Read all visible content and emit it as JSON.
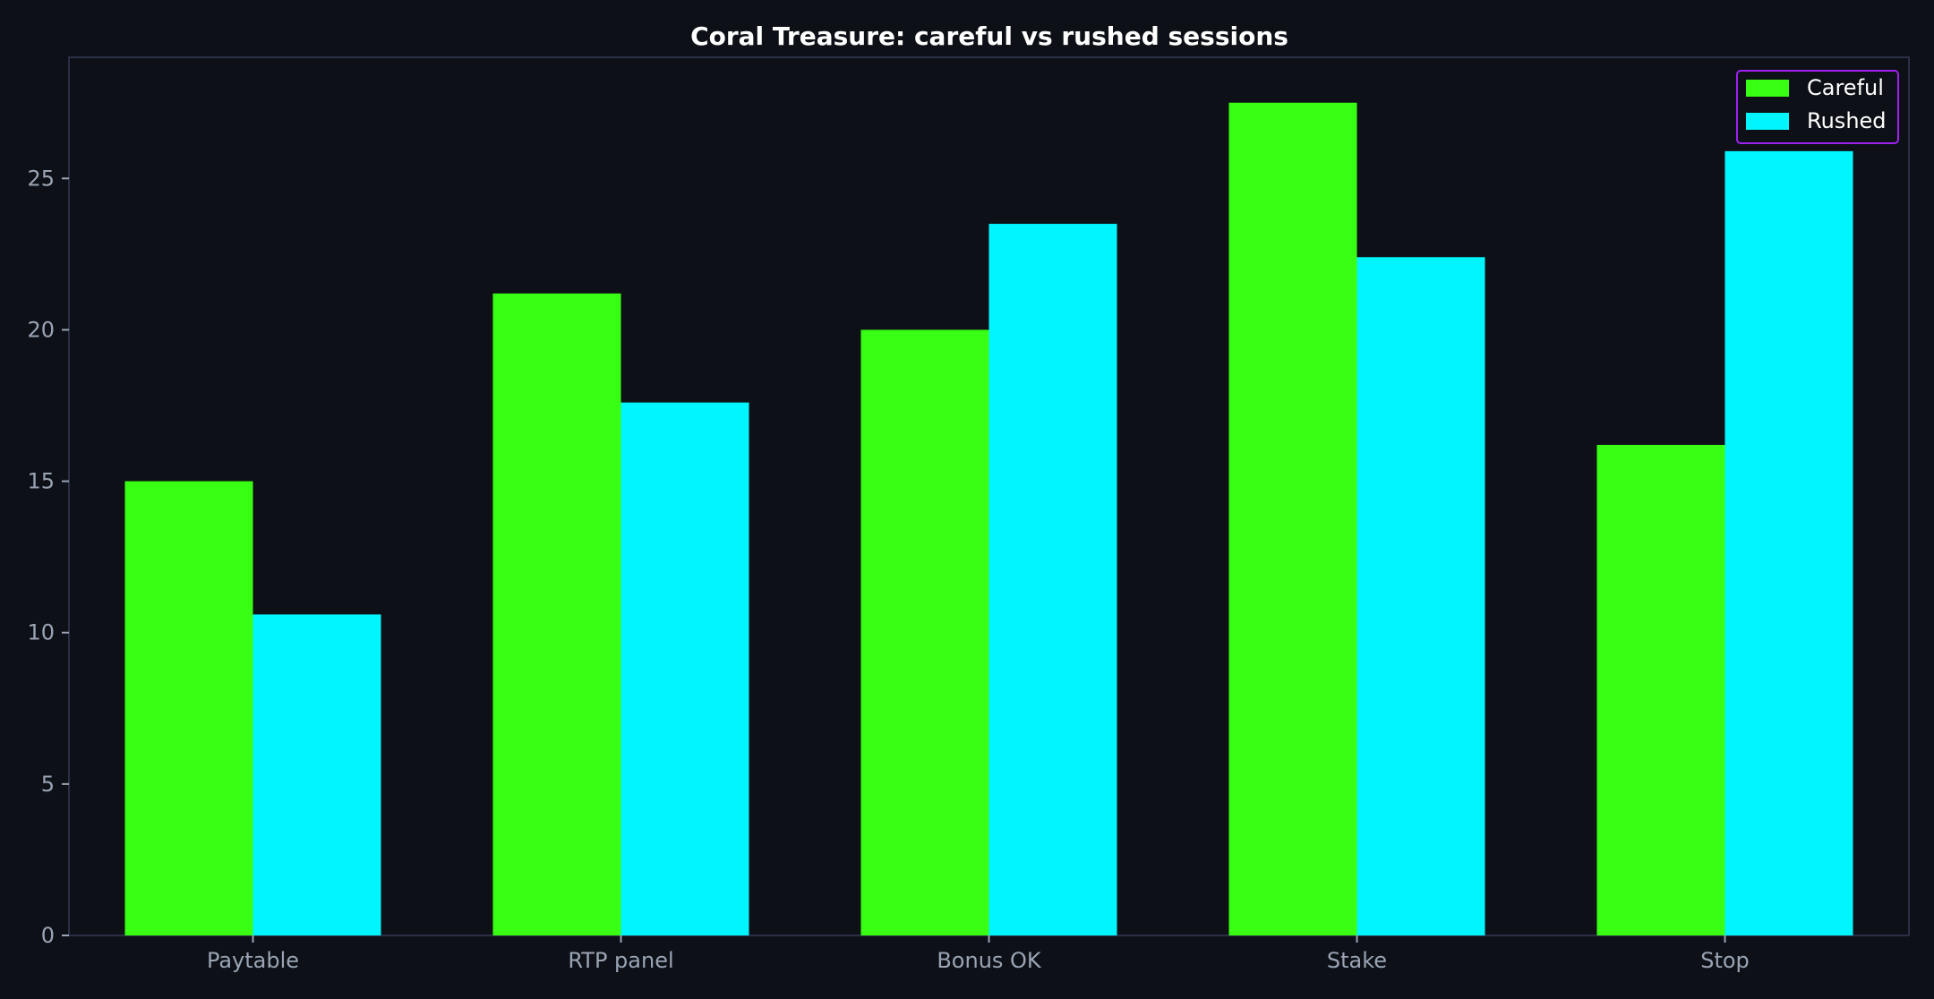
{
  "chart_data": {
    "type": "bar",
    "title": "Coral Treasure: careful vs rushed sessions",
    "xlabel": "",
    "ylabel": "",
    "categories": [
      "Paytable",
      "RTP panel",
      "Bonus OK",
      "Stake",
      "Stop"
    ],
    "series": [
      {
        "name": "Careful",
        "values": [
          15.0,
          21.2,
          20.0,
          27.5,
          16.2
        ],
        "color": "#39ff14"
      },
      {
        "name": "Rushed",
        "values": [
          10.6,
          17.6,
          23.5,
          22.4,
          25.9
        ],
        "color": "#00f5ff"
      }
    ],
    "ylim": [
      0,
      29
    ],
    "yticks": [
      0,
      5,
      10,
      15,
      20,
      25
    ],
    "grid": false,
    "legend_position": "top-right",
    "colors": {
      "background": "#0d1117",
      "axes_frame": "#2a2f45",
      "tick_text": "#9aa4b4",
      "title_text": "#ffffff",
      "legend_border": "#a020f0",
      "legend_background": "#0d1117"
    }
  }
}
